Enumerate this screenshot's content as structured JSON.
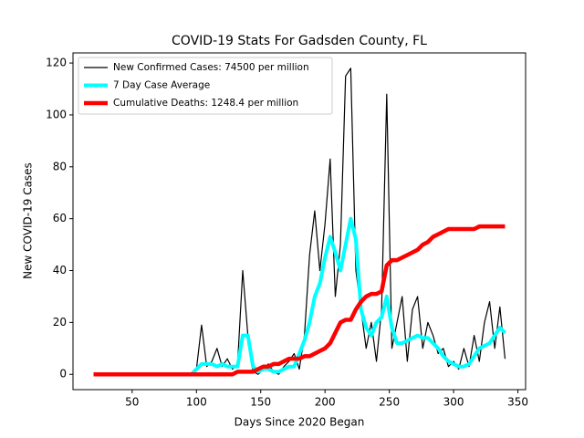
{
  "chart_data": {
    "type": "line",
    "title": "COVID-19 Stats For Gadsden County, FL",
    "xlabel": "Days Since 2020 Began",
    "ylabel": "New COVID-19 Cases",
    "x": [
      20,
      24,
      28,
      32,
      36,
      40,
      44,
      48,
      52,
      56,
      60,
      64,
      68,
      72,
      76,
      80,
      84,
      88,
      92,
      96,
      100,
      104,
      108,
      112,
      116,
      120,
      124,
      128,
      132,
      136,
      140,
      144,
      148,
      152,
      156,
      160,
      164,
      168,
      172,
      176,
      180,
      184,
      188,
      192,
      196,
      200,
      204,
      208,
      212,
      216,
      220,
      224,
      228,
      232,
      236,
      240,
      244,
      248,
      252,
      256,
      260,
      264,
      268,
      272,
      276,
      280,
      284,
      288,
      292,
      296,
      300,
      304,
      308,
      312,
      316,
      320,
      324,
      328,
      332,
      336,
      340
    ],
    "series": [
      {
        "name": "New Confirmed Cases: 74500 per million",
        "color": "#000000",
        "width": 1.2,
        "values": [
          0,
          0,
          0,
          0,
          0,
          0,
          0,
          0,
          0,
          0,
          0,
          0,
          0,
          0,
          0,
          0,
          0,
          0,
          0,
          0,
          2,
          19,
          3,
          5,
          10,
          3,
          6,
          2,
          4,
          40,
          15,
          1,
          0,
          2,
          4,
          1,
          0,
          3,
          5,
          8,
          2,
          15,
          46,
          63,
          40,
          58,
          83,
          30,
          50,
          115,
          118,
          40,
          25,
          10,
          20,
          5,
          25,
          108,
          10,
          20,
          30,
          5,
          25,
          30,
          10,
          20,
          15,
          8,
          10,
          3,
          5,
          2,
          10,
          3,
          15,
          5,
          20,
          28,
          10,
          26,
          6
        ]
      },
      {
        "name": "7 Day Case Average",
        "color": "#00ffff",
        "width": 4,
        "values": [
          null,
          null,
          null,
          null,
          null,
          null,
          null,
          null,
          null,
          null,
          null,
          null,
          null,
          null,
          null,
          null,
          null,
          null,
          null,
          0,
          2,
          4,
          4,
          4,
          3,
          4,
          3,
          3,
          3,
          15,
          15,
          3,
          1,
          2,
          2,
          1,
          1,
          2,
          3,
          3,
          8,
          13,
          20,
          30,
          35,
          45,
          53,
          47,
          40,
          50,
          60,
          52,
          25,
          18,
          15,
          20,
          22,
          30,
          18,
          12,
          12,
          13,
          14,
          15,
          14,
          14,
          12,
          10,
          7,
          5,
          4,
          3,
          3,
          4,
          7,
          10,
          11,
          12,
          15,
          18,
          16
        ]
      },
      {
        "name": "Cumulative Deaths: 1248.4 per million",
        "color": "#ff0000",
        "width": 4.5,
        "values": [
          0,
          0,
          0,
          0,
          0,
          0,
          0,
          0,
          0,
          0,
          0,
          0,
          0,
          0,
          0,
          0,
          0,
          0,
          0,
          0,
          0,
          0,
          0,
          0,
          0,
          0,
          0,
          0,
          1,
          1,
          1,
          1,
          2,
          3,
          3,
          4,
          4,
          5,
          6,
          6,
          6,
          7,
          7,
          8,
          9,
          10,
          12,
          16,
          20,
          21,
          21,
          25,
          28,
          30,
          31,
          31,
          32,
          42,
          44,
          44,
          45,
          46,
          47,
          48,
          50,
          51,
          53,
          54,
          55,
          56,
          56,
          56,
          56,
          56,
          56,
          57,
          57,
          57,
          57,
          57,
          57
        ]
      }
    ],
    "xlim": [
      4,
      356
    ],
    "ylim": [
      -5.9,
      123.9
    ],
    "xticks": [
      50,
      100,
      150,
      200,
      250,
      300,
      350
    ],
    "yticks": [
      0,
      20,
      40,
      60,
      80,
      100,
      120
    ],
    "legend": "upper left"
  }
}
